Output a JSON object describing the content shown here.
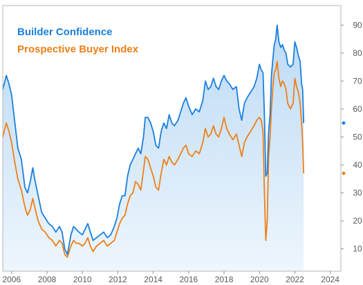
{
  "chart_data": {
    "type": "line",
    "title": "",
    "xlabel": "",
    "ylabel": "",
    "xlim": [
      2005.5,
      2024.6
    ],
    "ylim": [
      2,
      97
    ],
    "x_ticks": [
      "2006",
      "2008",
      "2010",
      "2012",
      "2014",
      "2016",
      "2018",
      "2020",
      "2022",
      "2024"
    ],
    "y_ticks": [
      "10",
      "20",
      "30",
      "40",
      "50",
      "60",
      "70",
      "80",
      "90"
    ],
    "y_axis_side": "right",
    "grid": false,
    "legend_placement": "top-left",
    "series": [
      {
        "name": "Builder Confidence",
        "color": "#1a7fdc",
        "fill_gradient": [
          "#bcdaf5",
          "#eef6fd"
        ],
        "end_marker_value": 55,
        "points": [
          [
            2005.5,
            67
          ],
          [
            2005.7,
            72
          ],
          [
            2005.85,
            69
          ],
          [
            2006.0,
            65
          ],
          [
            2006.15,
            57
          ],
          [
            2006.35,
            46
          ],
          [
            2006.55,
            42
          ],
          [
            2006.75,
            32
          ],
          [
            2006.9,
            30
          ],
          [
            2007.05,
            34
          ],
          [
            2007.2,
            39
          ],
          [
            2007.3,
            35
          ],
          [
            2007.5,
            29
          ],
          [
            2007.7,
            23
          ],
          [
            2007.9,
            21
          ],
          [
            2008.1,
            19
          ],
          [
            2008.3,
            18
          ],
          [
            2008.5,
            16
          ],
          [
            2008.7,
            18
          ],
          [
            2008.85,
            16
          ],
          [
            2009.0,
            10
          ],
          [
            2009.15,
            8
          ],
          [
            2009.35,
            15
          ],
          [
            2009.5,
            18
          ],
          [
            2009.65,
            17
          ],
          [
            2009.8,
            16
          ],
          [
            2010.0,
            15
          ],
          [
            2010.15,
            17
          ],
          [
            2010.3,
            19
          ],
          [
            2010.45,
            16
          ],
          [
            2010.6,
            13
          ],
          [
            2010.8,
            14
          ],
          [
            2011.0,
            15
          ],
          [
            2011.2,
            16
          ],
          [
            2011.4,
            14
          ],
          [
            2011.6,
            15
          ],
          [
            2011.8,
            18
          ],
          [
            2011.95,
            21
          ],
          [
            2012.1,
            26
          ],
          [
            2012.25,
            29
          ],
          [
            2012.4,
            29
          ],
          [
            2012.55,
            36
          ],
          [
            2012.7,
            40
          ],
          [
            2012.85,
            42
          ],
          [
            2013.0,
            44
          ],
          [
            2013.15,
            46
          ],
          [
            2013.3,
            44
          ],
          [
            2013.45,
            50
          ],
          [
            2013.55,
            57
          ],
          [
            2013.7,
            57
          ],
          [
            2013.85,
            55
          ],
          [
            2014.0,
            52
          ],
          [
            2014.15,
            47
          ],
          [
            2014.3,
            46
          ],
          [
            2014.45,
            52
          ],
          [
            2014.6,
            55
          ],
          [
            2014.75,
            53
          ],
          [
            2014.9,
            58
          ],
          [
            2015.05,
            55
          ],
          [
            2015.2,
            54
          ],
          [
            2015.4,
            56
          ],
          [
            2015.55,
            59
          ],
          [
            2015.7,
            62
          ],
          [
            2015.85,
            64
          ],
          [
            2016.0,
            61
          ],
          [
            2016.2,
            58
          ],
          [
            2016.4,
            60
          ],
          [
            2016.6,
            59
          ],
          [
            2016.8,
            63
          ],
          [
            2016.95,
            70
          ],
          [
            2017.1,
            67
          ],
          [
            2017.25,
            68
          ],
          [
            2017.4,
            71
          ],
          [
            2017.55,
            68
          ],
          [
            2017.7,
            67
          ],
          [
            2017.85,
            70
          ],
          [
            2018.0,
            72
          ],
          [
            2018.15,
            70
          ],
          [
            2018.3,
            69
          ],
          [
            2018.5,
            67
          ],
          [
            2018.7,
            68
          ],
          [
            2018.85,
            60
          ],
          [
            2019.0,
            56
          ],
          [
            2019.15,
            62
          ],
          [
            2019.3,
            64
          ],
          [
            2019.5,
            66
          ],
          [
            2019.7,
            68
          ],
          [
            2019.85,
            71
          ],
          [
            2020.0,
            76
          ],
          [
            2020.1,
            74
          ],
          [
            2020.2,
            73
          ],
          [
            2020.28,
            58
          ],
          [
            2020.36,
            36
          ],
          [
            2020.44,
            37
          ],
          [
            2020.52,
            52
          ],
          [
            2020.6,
            58
          ],
          [
            2020.68,
            72
          ],
          [
            2020.76,
            78
          ],
          [
            2020.84,
            83
          ],
          [
            2020.92,
            85
          ],
          [
            2021.0,
            90
          ],
          [
            2021.1,
            84
          ],
          [
            2021.2,
            82
          ],
          [
            2021.3,
            83
          ],
          [
            2021.4,
            81
          ],
          [
            2021.5,
            80
          ],
          [
            2021.6,
            76
          ],
          [
            2021.75,
            75
          ],
          [
            2021.9,
            76
          ],
          [
            2022.0,
            84
          ],
          [
            2022.1,
            82
          ],
          [
            2022.2,
            79
          ],
          [
            2022.3,
            77
          ],
          [
            2022.38,
            69
          ],
          [
            2022.44,
            67
          ],
          [
            2022.5,
            55
          ]
        ]
      },
      {
        "name": "Prospective Buyer Index",
        "color": "#ee7f17",
        "end_marker_value": 37,
        "points": [
          [
            2005.5,
            50
          ],
          [
            2005.7,
            55
          ],
          [
            2005.85,
            52
          ],
          [
            2006.0,
            48
          ],
          [
            2006.15,
            42
          ],
          [
            2006.35,
            35
          ],
          [
            2006.55,
            31
          ],
          [
            2006.75,
            25
          ],
          [
            2006.9,
            22
          ],
          [
            2007.05,
            24
          ],
          [
            2007.2,
            28
          ],
          [
            2007.3,
            25
          ],
          [
            2007.5,
            20
          ],
          [
            2007.7,
            17
          ],
          [
            2007.9,
            16
          ],
          [
            2008.1,
            14
          ],
          [
            2008.3,
            13
          ],
          [
            2008.5,
            11
          ],
          [
            2008.7,
            13
          ],
          [
            2008.85,
            12
          ],
          [
            2009.0,
            8
          ],
          [
            2009.15,
            7
          ],
          [
            2009.35,
            11
          ],
          [
            2009.5,
            13
          ],
          [
            2009.65,
            12
          ],
          [
            2009.8,
            12
          ],
          [
            2010.0,
            11
          ],
          [
            2010.15,
            12
          ],
          [
            2010.3,
            14
          ],
          [
            2010.45,
            11
          ],
          [
            2010.6,
            9
          ],
          [
            2010.8,
            11
          ],
          [
            2011.0,
            12
          ],
          [
            2011.2,
            13
          ],
          [
            2011.4,
            11
          ],
          [
            2011.6,
            12
          ],
          [
            2011.8,
            13
          ],
          [
            2011.95,
            16
          ],
          [
            2012.1,
            19
          ],
          [
            2012.25,
            21
          ],
          [
            2012.4,
            22
          ],
          [
            2012.55,
            26
          ],
          [
            2012.7,
            29
          ],
          [
            2012.85,
            30
          ],
          [
            2013.0,
            34
          ],
          [
            2013.15,
            33
          ],
          [
            2013.3,
            31
          ],
          [
            2013.45,
            38
          ],
          [
            2013.55,
            43
          ],
          [
            2013.7,
            42
          ],
          [
            2013.85,
            39
          ],
          [
            2014.0,
            36
          ],
          [
            2014.15,
            32
          ],
          [
            2014.3,
            31
          ],
          [
            2014.45,
            37
          ],
          [
            2014.6,
            42
          ],
          [
            2014.75,
            40
          ],
          [
            2014.9,
            43
          ],
          [
            2015.05,
            41
          ],
          [
            2015.2,
            40
          ],
          [
            2015.4,
            42
          ],
          [
            2015.55,
            44
          ],
          [
            2015.7,
            46
          ],
          [
            2015.85,
            47
          ],
          [
            2016.0,
            44
          ],
          [
            2016.2,
            43
          ],
          [
            2016.4,
            45
          ],
          [
            2016.6,
            44
          ],
          [
            2016.8,
            48
          ],
          [
            2016.95,
            53
          ],
          [
            2017.1,
            50
          ],
          [
            2017.25,
            51
          ],
          [
            2017.4,
            54
          ],
          [
            2017.55,
            51
          ],
          [
            2017.7,
            50
          ],
          [
            2017.85,
            53
          ],
          [
            2018.0,
            57
          ],
          [
            2018.15,
            53
          ],
          [
            2018.3,
            51
          ],
          [
            2018.5,
            49
          ],
          [
            2018.7,
            51
          ],
          [
            2018.85,
            47
          ],
          [
            2019.0,
            43
          ],
          [
            2019.15,
            48
          ],
          [
            2019.3,
            50
          ],
          [
            2019.5,
            52
          ],
          [
            2019.7,
            54
          ],
          [
            2019.85,
            56
          ],
          [
            2020.0,
            57
          ],
          [
            2020.1,
            56
          ],
          [
            2020.2,
            52
          ],
          [
            2020.28,
            30
          ],
          [
            2020.36,
            13
          ],
          [
            2020.44,
            20
          ],
          [
            2020.52,
            43
          ],
          [
            2020.6,
            50
          ],
          [
            2020.68,
            60
          ],
          [
            2020.76,
            68
          ],
          [
            2020.84,
            73
          ],
          [
            2020.92,
            74
          ],
          [
            2021.0,
            77
          ],
          [
            2021.1,
            71
          ],
          [
            2021.2,
            68
          ],
          [
            2021.3,
            70
          ],
          [
            2021.4,
            69
          ],
          [
            2021.5,
            67
          ],
          [
            2021.6,
            62
          ],
          [
            2021.75,
            60
          ],
          [
            2021.9,
            62
          ],
          [
            2022.0,
            71
          ],
          [
            2022.1,
            68
          ],
          [
            2022.2,
            66
          ],
          [
            2022.3,
            62
          ],
          [
            2022.38,
            55
          ],
          [
            2022.44,
            48
          ],
          [
            2022.5,
            37
          ]
        ]
      }
    ]
  }
}
